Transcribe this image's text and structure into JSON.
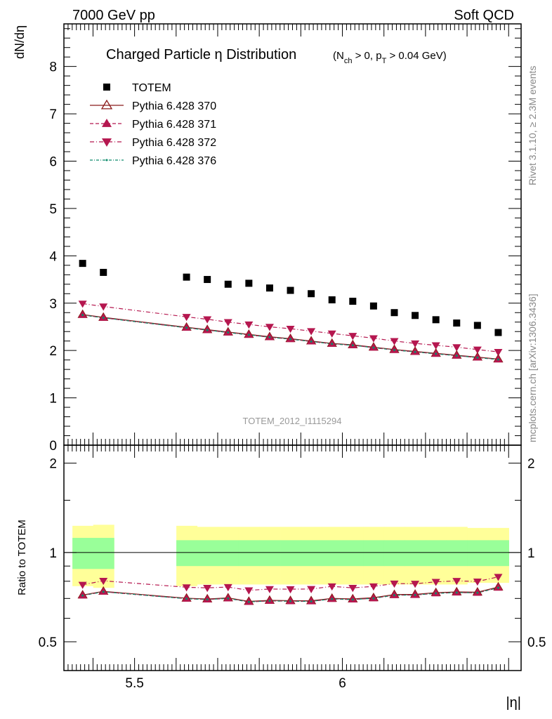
{
  "header": {
    "left": "7000 GeV pp",
    "right": "Soft QCD"
  },
  "side_labels": {
    "rivet": "Rivet 3.1.10, ≥ 2.3M events",
    "mcplots": "mcplots.cern.ch [arXiv:1306.3436]"
  },
  "chart_data": {
    "type": "scatter",
    "title": "Charged Particle η Distribution",
    "title_sub": "(N_ch > 0, p_T > 0.04 GeV)",
    "ylabel": "dN/dη",
    "xlabel": "|η|",
    "watermark": "TOTEM_2012_I1115294",
    "ylim": [
      0,
      8.9
    ],
    "xlim": [
      5.33,
      6.43
    ],
    "yticks": [
      "0",
      "1",
      "2",
      "3",
      "4",
      "5",
      "6",
      "7",
      "8"
    ],
    "xticks": [
      "5.5",
      "6"
    ],
    "x": [
      5.375,
      5.425,
      5.625,
      5.675,
      5.725,
      5.775,
      5.825,
      5.875,
      5.925,
      5.975,
      6.025,
      6.075,
      6.125,
      6.175,
      6.225,
      6.275,
      6.325,
      6.375
    ],
    "totem": [
      3.84,
      3.65,
      3.55,
      3.5,
      3.4,
      3.42,
      3.32,
      3.27,
      3.2,
      3.07,
      3.04,
      2.94,
      2.8,
      2.74,
      2.65,
      2.58,
      2.53,
      2.38
    ],
    "totem_band_inner": [
      0.12,
      0.12,
      0.1,
      0.1,
      0.1,
      0.1,
      0.1,
      0.1,
      0.1,
      0.1,
      0.1,
      0.1,
      0.1,
      0.1,
      0.1,
      0.1,
      0.1,
      0.1
    ],
    "totem_band_outer": [
      0.23,
      0.24,
      0.23,
      0.22,
      0.22,
      0.22,
      0.22,
      0.22,
      0.22,
      0.22,
      0.22,
      0.22,
      0.22,
      0.22,
      0.22,
      0.22,
      0.21,
      0.21
    ],
    "series": [
      {
        "name": "TOTEM",
        "style": "square",
        "color": "#000000"
      },
      {
        "name": "Pythia 6.428 370",
        "style": "tri-up-open",
        "color": "#8b1a1a",
        "values": [
          2.76,
          2.7,
          2.49,
          2.44,
          2.39,
          2.34,
          2.29,
          2.25,
          2.2,
          2.15,
          2.12,
          2.07,
          2.02,
          1.98,
          1.94,
          1.9,
          1.86,
          1.82
        ]
      },
      {
        "name": "Pythia 6.428 371",
        "style": "tri-up",
        "color": "#b5174f",
        "values": [
          2.75,
          2.69,
          2.48,
          2.43,
          2.38,
          2.33,
          2.28,
          2.24,
          2.19,
          2.14,
          2.11,
          2.06,
          2.01,
          1.97,
          1.93,
          1.89,
          1.85,
          1.81
        ]
      },
      {
        "name": "Pythia 6.428 372",
        "style": "tri-down",
        "color": "#b5174f",
        "values": [
          2.99,
          2.93,
          2.71,
          2.66,
          2.6,
          2.55,
          2.5,
          2.46,
          2.41,
          2.36,
          2.31,
          2.26,
          2.2,
          2.15,
          2.11,
          2.07,
          2.02,
          1.97
        ]
      },
      {
        "name": "Pythia 6.428 376",
        "style": "dot",
        "color": "#0a8a6a",
        "values": [
          2.75,
          2.69,
          2.48,
          2.43,
          2.38,
          2.33,
          2.28,
          2.24,
          2.19,
          2.14,
          2.11,
          2.06,
          2.01,
          1.97,
          1.93,
          1.89,
          1.85,
          1.81
        ]
      }
    ],
    "ratio": {
      "ylabel": "Ratio to TOTEM",
      "yticks": [
        "0.5",
        "1",
        "2"
      ],
      "ylim": [
        0.4,
        2.3
      ],
      "log": true
    }
  }
}
